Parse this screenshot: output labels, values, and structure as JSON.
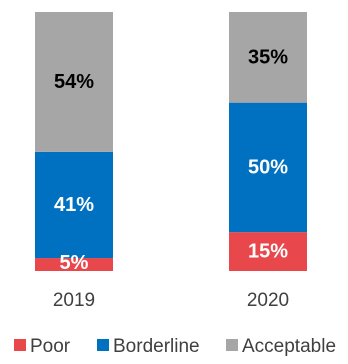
{
  "chart_data": {
    "type": "bar",
    "stacked": true,
    "categories": [
      "2019",
      "2020"
    ],
    "series": [
      {
        "name": "Poor",
        "values": [
          5,
          15
        ],
        "labels": [
          "5%",
          "15%"
        ],
        "color": "#e8474c",
        "label_color": "#ffffff"
      },
      {
        "name": "Borderline",
        "values": [
          41,
          50
        ],
        "labels": [
          "41%",
          "50%"
        ],
        "color": "#0070c0",
        "label_color": "#ffffff"
      },
      {
        "name": "Acceptable",
        "values": [
          54,
          35
        ],
        "labels": [
          "54%",
          "35%"
        ],
        "color": "#a6a6a6",
        "label_color": "#000000"
      }
    ],
    "ylim": [
      0,
      100
    ],
    "grid": false,
    "legend": "bottom"
  }
}
